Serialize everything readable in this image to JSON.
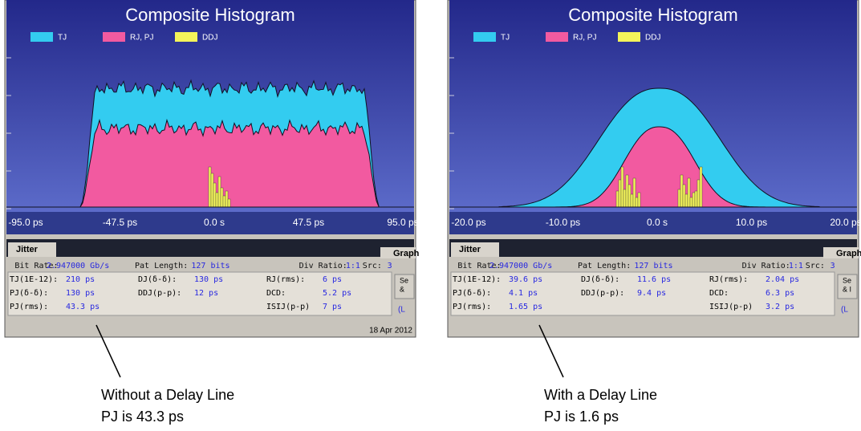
{
  "panels": [
    {
      "title": "Composite Histogram",
      "legend": [
        "TJ",
        "RJ, PJ",
        "DDJ"
      ],
      "xtick_labels": [
        "-95.0 ps",
        "-47.5 ps",
        "0.0 s",
        "47.5 ps",
        "95.0 ps"
      ],
      "tab": "Jitter",
      "tab2": "Graph",
      "info_row": [
        "Bit Rate:",
        "2.947000 Gb/s",
        "Pat Length:",
        "127 bits",
        "Div Ratio:",
        "1:1",
        "Src:",
        "3"
      ],
      "rows": [
        [
          {
            "label": "TJ(1E-12):",
            "value": "210 ps"
          },
          {
            "label": "DJ(δ-δ):",
            "value": "130 ps"
          },
          {
            "label": "RJ(rms):",
            "value": "6 ps"
          }
        ],
        [
          {
            "label": "PJ(δ-δ):",
            "value": "130 ps"
          },
          {
            "label": "DDJ(p-p):",
            "value": "12 ps"
          },
          {
            "label": "DCD:",
            "value": "5.2 ps"
          }
        ],
        [
          {
            "label": "PJ(rms):",
            "value": "43.3 ps"
          },
          null,
          {
            "label": "ISIJ(p-p)",
            "value": "7 ps"
          }
        ]
      ],
      "side_button": [
        "Se",
        "&"
      ],
      "side_link": "(L",
      "date": "18 Apr 2012",
      "caption": [
        "Without a Delay Line",
        "PJ is 43.3 ps"
      ]
    },
    {
      "title": "Composite Histogram",
      "legend": [
        "TJ",
        "RJ, PJ",
        "DDJ"
      ],
      "xtick_labels": [
        "-20.0 ps",
        "-10.0 ps",
        "0.0 s",
        "10.0 ps",
        "20.0 ps"
      ],
      "tab": "Jitter",
      "tab2": "Graph",
      "info_row": [
        "Bit Rate:",
        "2.947000 Gb/s",
        "Pat Length:",
        "127 bits",
        "Div Ratio:",
        "1:1",
        "Src:",
        "3"
      ],
      "rows": [
        [
          {
            "label": "TJ(1E-12):",
            "value": "39.6 ps"
          },
          {
            "label": "DJ(δ-δ):",
            "value": "11.6 ps"
          },
          {
            "label": "RJ(rms):",
            "value": "2.04 ps"
          }
        ],
        [
          {
            "label": "PJ(δ-δ):",
            "value": "4.1 ps"
          },
          {
            "label": "DDJ(p-p):",
            "value": "9.4 ps"
          },
          {
            "label": "DCD:",
            "value": "6.3 ps"
          }
        ],
        [
          {
            "label": "PJ(rms):",
            "value": "1.65 ps"
          },
          null,
          {
            "label": "ISIJ(p-p)",
            "value": "3.2 ps"
          }
        ]
      ],
      "side_button": [
        "Se",
        "& I"
      ],
      "side_link": "(L",
      "caption": [
        "With a Delay Line",
        "PJ is 1.6 ps"
      ]
    }
  ]
}
